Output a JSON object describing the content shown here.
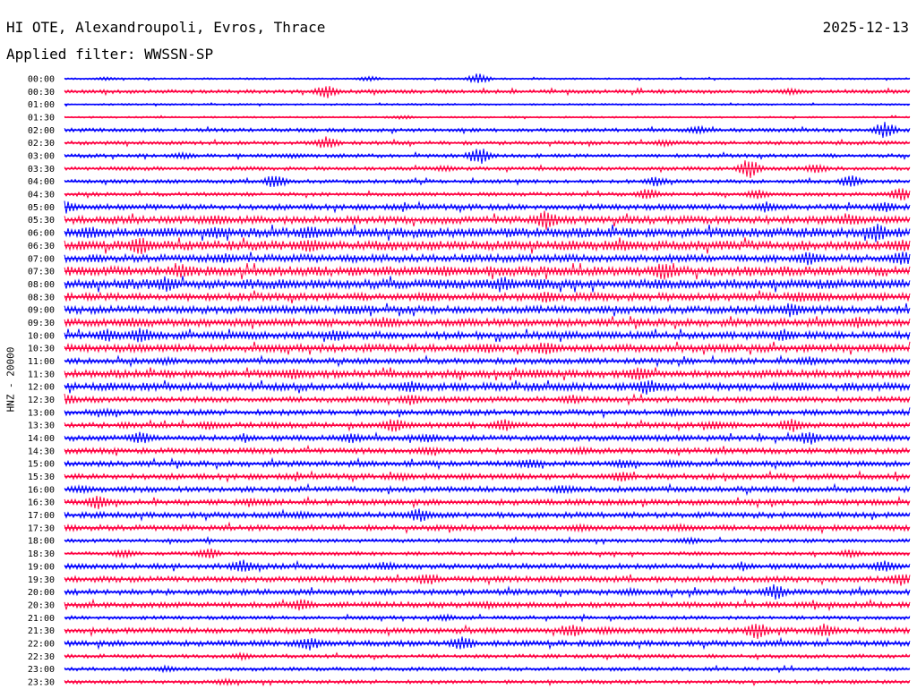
{
  "header": {
    "station": "HI OTE, Alexandroupoli, Evros, Thrace",
    "date": "2025-12-13",
    "filter": "Applied filter: WWSSN-SP"
  },
  "chart_data": {
    "type": "line",
    "title": "HI OTE, Alexandroupoli, Evros, Thrace",
    "ylabel": "HNZ - 20000",
    "trace_colors": [
      "#0000ff",
      "#ff0040"
    ],
    "row_labels": [
      "00:00",
      "00:30",
      "01:00",
      "01:30",
      "02:00",
      "02:30",
      "03:00",
      "03:30",
      "04:00",
      "04:30",
      "05:00",
      "05:30",
      "06:00",
      "06:30",
      "07:00",
      "07:30",
      "08:00",
      "08:30",
      "09:00",
      "09:30",
      "10:00",
      "10:30",
      "11:00",
      "11:30",
      "12:00",
      "12:30",
      "13:00",
      "13:30",
      "14:00",
      "14:30",
      "15:00",
      "15:30",
      "16:00",
      "16:30",
      "17:00",
      "17:30",
      "18:00",
      "18:30",
      "19:00",
      "19:30",
      "20:00",
      "20:30",
      "21:00",
      "21:30",
      "22:00",
      "22:30",
      "23:00",
      "23:30"
    ],
    "noise_level": [
      1,
      2,
      1,
      1,
      2,
      2,
      2,
      2,
      2,
      2,
      3,
      4,
      5,
      5,
      4,
      5,
      5,
      4,
      4,
      4,
      4,
      4,
      3,
      4,
      4,
      3,
      3,
      3,
      3,
      3,
      3,
      3,
      3,
      3,
      3,
      3,
      2,
      2,
      3,
      3,
      3,
      3,
      2,
      3,
      3,
      2,
      2,
      2
    ],
    "events": [
      [
        [
          0.05,
          2
        ],
        [
          0.36,
          3
        ],
        [
          0.49,
          6
        ]
      ],
      [
        [
          0.31,
          7
        ],
        [
          0.86,
          3
        ]
      ],
      [],
      [
        [
          0.4,
          2
        ]
      ],
      [
        [
          0.75,
          4
        ],
        [
          0.97,
          9
        ]
      ],
      [
        [
          0.31,
          7
        ],
        [
          0.71,
          3
        ]
      ],
      [
        [
          0.49,
          10
        ],
        [
          0.14,
          3
        ],
        [
          0.27,
          2
        ]
      ],
      [
        [
          0.45,
          3
        ],
        [
          0.81,
          11
        ],
        [
          0.89,
          5
        ]
      ],
      [
        [
          0.25,
          8
        ],
        [
          0.7,
          5
        ],
        [
          0.93,
          7
        ]
      ],
      [
        [
          0.69,
          6
        ],
        [
          0.82,
          5
        ],
        [
          0.99,
          7
        ]
      ],
      [
        [
          0.0,
          7
        ],
        [
          0.83,
          5
        ],
        [
          0.97,
          5
        ]
      ],
      [
        [
          0.18,
          4
        ],
        [
          0.57,
          10
        ],
        [
          0.93,
          5
        ]
      ],
      [
        [
          0.03,
          5
        ],
        [
          0.18,
          5
        ],
        [
          0.29,
          6
        ],
        [
          0.96,
          9
        ]
      ],
      [
        [
          0.09,
          8
        ],
        [
          0.29,
          6
        ],
        [
          0.66,
          4
        ],
        [
          0.99,
          5
        ]
      ],
      [
        [
          0.19,
          4
        ],
        [
          0.88,
          6
        ],
        [
          0.99,
          7
        ]
      ],
      [
        [
          0.14,
          6
        ],
        [
          0.71,
          9
        ],
        [
          0.45,
          4
        ]
      ],
      [
        [
          0.12,
          7
        ],
        [
          0.52,
          6
        ],
        [
          0.56,
          4
        ]
      ],
      [
        [
          0.43,
          4
        ],
        [
          0.57,
          5
        ],
        [
          0.87,
          5
        ],
        [
          0.89,
          4
        ]
      ],
      [
        [
          0.34,
          4
        ],
        [
          0.86,
          7
        ]
      ],
      [
        [
          0.08,
          4
        ],
        [
          0.38,
          5
        ],
        [
          0.94,
          5
        ]
      ],
      [
        [
          0.05,
          6
        ],
        [
          0.09,
          8
        ],
        [
          0.32,
          5
        ],
        [
          0.85,
          5
        ]
      ],
      [
        [
          0.57,
          7
        ],
        [
          0.5,
          4
        ]
      ],
      [
        [
          0.12,
          3
        ],
        [
          0.88,
          4
        ]
      ],
      [
        [
          0.27,
          5
        ],
        [
          0.68,
          7
        ],
        [
          0.56,
          3
        ]
      ],
      [
        [
          0.69,
          8
        ],
        [
          0.41,
          5
        ],
        [
          0.87,
          4
        ]
      ],
      [
        [
          0.0,
          6
        ],
        [
          0.41,
          6
        ],
        [
          0.6,
          4
        ]
      ],
      [
        [
          0.05,
          3
        ],
        [
          0.72,
          3
        ]
      ],
      [
        [
          0.17,
          4
        ],
        [
          0.39,
          7
        ],
        [
          0.52,
          6
        ],
        [
          0.77,
          4
        ],
        [
          0.86,
          7
        ]
      ],
      [
        [
          0.09,
          6
        ],
        [
          0.34,
          5
        ],
        [
          0.43,
          4
        ],
        [
          0.88,
          7
        ]
      ],
      [
        [
          0.43,
          4
        ],
        [
          0.61,
          3
        ]
      ],
      [
        [
          0.55,
          5
        ],
        [
          0.66,
          4
        ],
        [
          0.72,
          3
        ]
      ],
      [
        [
          0.4,
          3
        ],
        [
          0.66,
          6
        ]
      ],
      [
        [
          0.02,
          3
        ],
        [
          0.59,
          4
        ]
      ],
      [
        [
          0.04,
          7
        ],
        [
          0.22,
          3
        ]
      ],
      [
        [
          0.42,
          7
        ],
        [
          0.28,
          3
        ]
      ],
      [
        [
          0.61,
          3
        ],
        [
          0.73,
          3
        ]
      ],
      [
        [
          0.74,
          3
        ]
      ],
      [
        [
          0.07,
          4
        ],
        [
          0.17,
          6
        ],
        [
          0.93,
          4
        ]
      ],
      [
        [
          0.21,
          7
        ],
        [
          0.38,
          4
        ],
        [
          0.97,
          6
        ]
      ],
      [
        [
          0.43,
          6
        ],
        [
          0.99,
          7
        ]
      ],
      [
        [
          0.84,
          8
        ],
        [
          0.67,
          3
        ]
      ],
      [
        [
          0.28,
          6
        ],
        [
          0.5,
          3
        ]
      ],
      [
        [
          0.45,
          3
        ]
      ],
      [
        [
          0.6,
          7
        ],
        [
          0.82,
          9
        ],
        [
          0.9,
          7
        ],
        [
          0.64,
          3
        ]
      ],
      [
        [
          0.29,
          7
        ],
        [
          0.47,
          8
        ]
      ],
      [
        [
          0.21,
          3
        ]
      ],
      [
        [
          0.12,
          3
        ]
      ],
      [
        [
          0.19,
          3
        ]
      ]
    ]
  }
}
